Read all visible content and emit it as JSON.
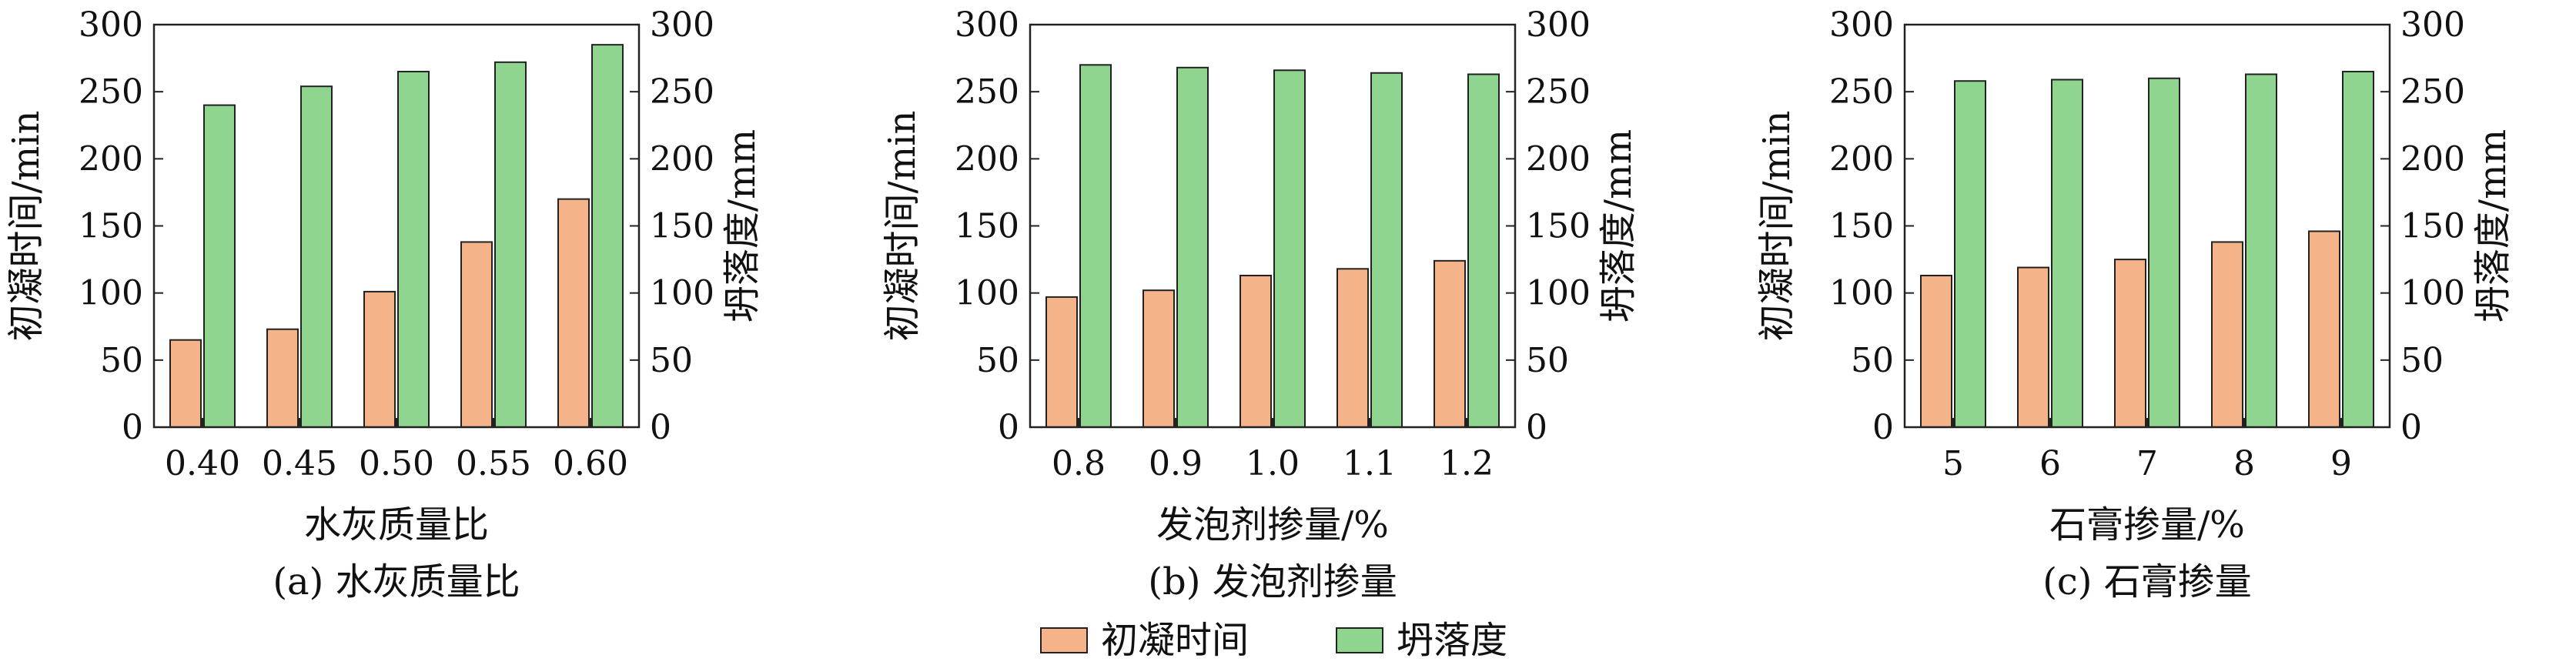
{
  "colors": {
    "initial_setting": "#f5b38a",
    "slump": "#8fd48f",
    "stroke": "#222222"
  },
  "chart_data": [
    {
      "type": "bar",
      "caption": "(a) 水灰质量比",
      "xlabel": "水灰质量比",
      "ylabel_left": "初凝时间/min",
      "ylabel_right": "坍落度/mm",
      "ylim_left": [
        0,
        300
      ],
      "ylim_right": [
        0,
        300
      ],
      "yticks": [
        "0",
        "50",
        "100",
        "150",
        "200",
        "250",
        "300"
      ],
      "categories": [
        "0.40",
        "0.45",
        "0.50",
        "0.55",
        "0.60"
      ],
      "series": [
        {
          "name": "初凝时间",
          "axis": "left",
          "values": [
            65,
            73,
            101,
            138,
            170
          ]
        },
        {
          "name": "坍落度",
          "axis": "right",
          "values": [
            240,
            254,
            265,
            272,
            285
          ]
        }
      ]
    },
    {
      "type": "bar",
      "caption": "(b) 发泡剂掺量",
      "xlabel": "发泡剂掺量/%",
      "ylabel_left": "初凝时间/min",
      "ylabel_right": "坍落度/mm",
      "ylim_left": [
        0,
        300
      ],
      "ylim_right": [
        0,
        300
      ],
      "yticks": [
        "0",
        "50",
        "100",
        "150",
        "200",
        "250",
        "300"
      ],
      "categories": [
        "0.8",
        "0.9",
        "1.0",
        "1.1",
        "1.2"
      ],
      "series": [
        {
          "name": "初凝时间",
          "axis": "left",
          "values": [
            97,
            102,
            113,
            118,
            124
          ]
        },
        {
          "name": "坍落度",
          "axis": "right",
          "values": [
            270,
            268,
            266,
            264,
            263
          ]
        }
      ]
    },
    {
      "type": "bar",
      "caption": "(c) 石膏掺量",
      "xlabel": "石膏掺量/%",
      "ylabel_left": "初凝时间/min",
      "ylabel_right": "坍落度/mm",
      "ylim_left": [
        0,
        300
      ],
      "ylim_right": [
        0,
        300
      ],
      "yticks": [
        "0",
        "50",
        "100",
        "150",
        "200",
        "250",
        "300"
      ],
      "categories": [
        "5",
        "6",
        "7",
        "8",
        "9"
      ],
      "series": [
        {
          "name": "初凝时间",
          "axis": "left",
          "values": [
            113,
            119,
            125,
            138,
            146
          ]
        },
        {
          "name": "坍落度",
          "axis": "right",
          "values": [
            258,
            259,
            260,
            263,
            265
          ]
        }
      ]
    }
  ],
  "legend": {
    "items": [
      {
        "label": "初凝时间",
        "series": "initial_setting"
      },
      {
        "label": "坍落度",
        "series": "slump"
      }
    ]
  }
}
